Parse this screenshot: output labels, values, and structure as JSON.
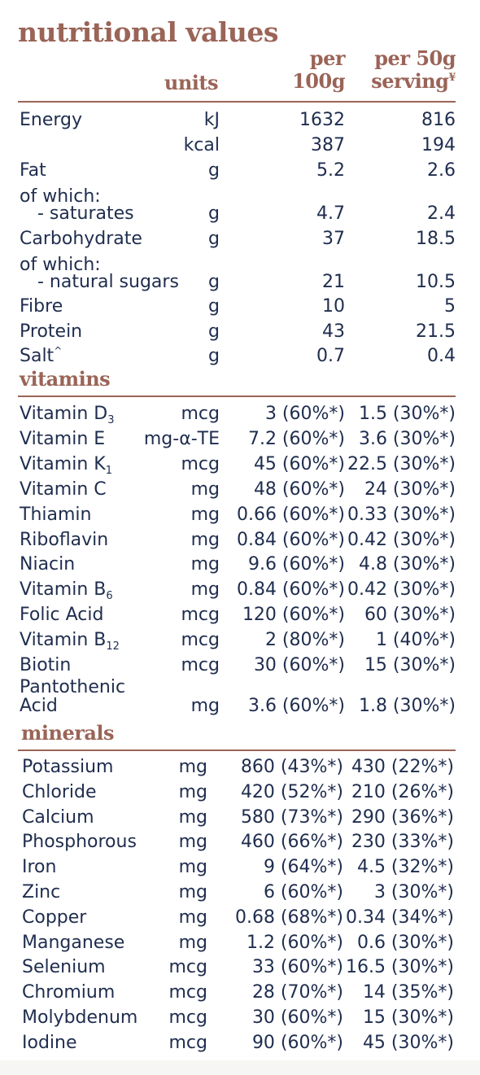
{
  "title": "nutritional values",
  "headers": {
    "units": "units",
    "per100_line1": "per",
    "per100_line2": "100g",
    "per50_line1": "per 50g",
    "per50_line2": "serving",
    "per50_mark": "¥"
  },
  "nutrition": {
    "energy_kj": {
      "name": "Energy",
      "unit": "kJ",
      "v100": "1632",
      "v50": "816"
    },
    "energy_kcal": {
      "unit": "kcal",
      "v100": "387",
      "v50": "194"
    },
    "fat": {
      "name": "Fat",
      "unit": "g",
      "v100": "5.2",
      "v50": "2.6"
    },
    "of_which_1": "of which:",
    "saturates": {
      "name": "- saturates",
      "unit": "g",
      "v100": "4.7",
      "v50": "2.4"
    },
    "carbohydrate": {
      "name": "Carbohydrate",
      "unit": "g",
      "v100": "37",
      "v50": "18.5"
    },
    "of_which_2": "of which:",
    "sugars": {
      "name": "- natural sugars",
      "unit": "g",
      "v100": "21",
      "v50": "10.5"
    },
    "fibre": {
      "name": "Fibre",
      "unit": "g",
      "v100": "10",
      "v50": "5"
    },
    "protein": {
      "name": "Protein",
      "unit": "g",
      "v100": "43",
      "v50": "21.5"
    },
    "salt": {
      "name": "Salt",
      "mark": "^",
      "unit": "g",
      "v100": "0.7",
      "v50": "0.4"
    }
  },
  "vitamins": {
    "title": "vitamins",
    "rows": [
      {
        "name": "Vitamin D",
        "sub": "3",
        "unit": "mcg",
        "v100": "3 (60%*)",
        "v50": "1.5 (30%*)"
      },
      {
        "name": "Vitamin E",
        "sub": "",
        "unit": "mg-α-TE",
        "v100": "7.2 (60%*)",
        "v50": "3.6 (30%*)"
      },
      {
        "name": "Vitamin K",
        "sub": "1",
        "unit": "mcg",
        "v100": "45 (60%*)",
        "v50": "22.5 (30%*)"
      },
      {
        "name": "Vitamin C",
        "sub": "",
        "unit": "mg",
        "v100": "48 (60%*)",
        "v50": "24 (30%*)"
      },
      {
        "name": "Thiamin",
        "sub": "",
        "unit": "mg",
        "v100": "0.66 (60%*)",
        "v50": "0.33 (30%*)"
      },
      {
        "name": "Riboflavin",
        "sub": "",
        "unit": "mg",
        "v100": "0.84 (60%*)",
        "v50": "0.42 (30%*)"
      },
      {
        "name": "Niacin",
        "sub": "",
        "unit": "mg",
        "v100": "9.6 (60%*)",
        "v50": "4.8 (30%*)"
      },
      {
        "name": "Vitamin B",
        "sub": "6",
        "unit": "mg",
        "v100": "0.84 (60%*)",
        "v50": "0.42 (30%*)"
      },
      {
        "name": "Folic Acid",
        "sub": "",
        "unit": "mcg",
        "v100": "120 (60%*)",
        "v50": "60 (30%*)"
      },
      {
        "name": "Vitamin B",
        "sub": "12",
        "unit": "mcg",
        "v100": "2 (80%*)",
        "v50": "1 (40%*)"
      },
      {
        "name": "Biotin",
        "sub": "",
        "unit": "mcg",
        "v100": "30 (60%*)",
        "v50": "15 (30%*)"
      }
    ],
    "pantothenic": {
      "line1": "Pantothenic",
      "line2": "Acid",
      "unit": "mg",
      "v100": "3.6 (60%*)",
      "v50": "1.8 (30%*)"
    }
  },
  "minerals": {
    "title": "minerals",
    "rows": [
      {
        "name": "Potassium",
        "unit": "mg",
        "v100": "860 (43%*)",
        "v50": "430 (22%*)"
      },
      {
        "name": "Chloride",
        "unit": "mg",
        "v100": "420 (52%*)",
        "v50": "210 (26%*)"
      },
      {
        "name": "Calcium",
        "unit": "mg",
        "v100": "580 (73%*)",
        "v50": "290 (36%*)"
      },
      {
        "name": "Phosphorous",
        "unit": "mg",
        "v100": "460 (66%*)",
        "v50": "230 (33%*)"
      },
      {
        "name": "Iron",
        "unit": "mg",
        "v100": "9 (64%*)",
        "v50": "4.5 (32%*)"
      },
      {
        "name": "Zinc",
        "unit": "mg",
        "v100": "6 (60%*)",
        "v50": "3 (30%*)"
      },
      {
        "name": "Copper",
        "unit": "mg",
        "v100": "0.68 (68%*)",
        "v50": "0.34 (34%*)"
      },
      {
        "name": "Manganese",
        "unit": "mg",
        "v100": "1.2 (60%*)",
        "v50": "0.6 (30%*)"
      },
      {
        "name": "Selenium",
        "unit": "mcg",
        "v100": "33 (60%*)",
        "v50": "16.5 (30%*)"
      },
      {
        "name": "Chromium",
        "unit": "mcg",
        "v100": "28 (70%*)",
        "v50": "14 (35%*)"
      },
      {
        "name": "Molybdenum",
        "unit": "mcg",
        "v100": "30 (60%*)",
        "v50": "15 (30%*)"
      },
      {
        "name": "Iodine",
        "unit": "mcg",
        "v100": "90 (60%*)",
        "v50": "45 (30%*)"
      }
    ]
  },
  "colors": {
    "accent": "#9a6457",
    "text": "#1f2d4e"
  }
}
